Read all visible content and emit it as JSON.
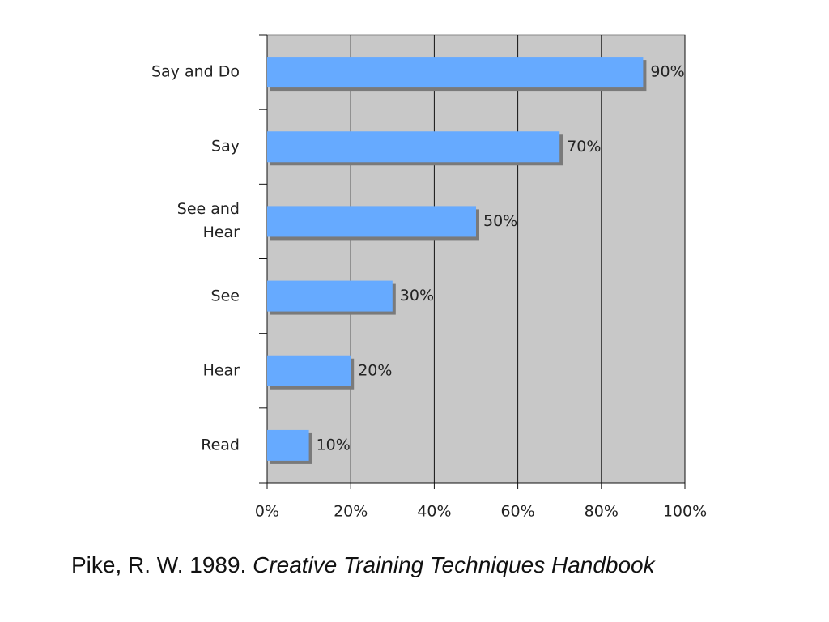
{
  "chart_data": {
    "type": "barh",
    "categories": [
      "Say and Do",
      "Say",
      "See and\nHear",
      "See",
      "Hear",
      "Read"
    ],
    "values": [
      90,
      70,
      50,
      30,
      20,
      10
    ],
    "value_labels": [
      "90%",
      "70%",
      "50%",
      "30%",
      "20%",
      "10%"
    ],
    "color": "#66aaff",
    "xlim": [
      0,
      100
    ],
    "xticks": [
      {
        "value": 0,
        "label": "0%"
      },
      {
        "value": 20,
        "label": "20%"
      },
      {
        "value": 40,
        "label": "40%"
      },
      {
        "value": 60,
        "label": "60%"
      },
      {
        "value": 80,
        "label": "80%"
      },
      {
        "value": 100,
        "label": "100%"
      }
    ],
    "grid": true
  },
  "caption": {
    "source": "Pike, R. W. 1989.",
    "title": "Creative Training Techniques Handbook"
  }
}
